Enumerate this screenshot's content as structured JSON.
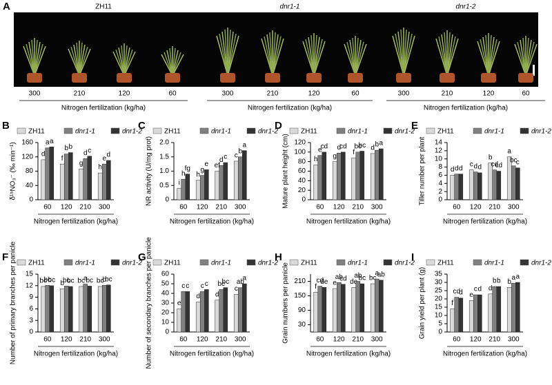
{
  "panel_a": {
    "label": "A",
    "groups": [
      {
        "name": "ZH11",
        "doses": [
          "300",
          "210",
          "120",
          "60"
        ],
        "xlabel": "Nitrogen fertilization (kg/ha)"
      },
      {
        "name": "dnr1-1",
        "doses": [
          "300",
          "210",
          "120",
          "60"
        ],
        "xlabel": "Nitrogen fertilization (kg/ha)"
      },
      {
        "name": "dnr1-2",
        "doses": [
          "300",
          "210",
          "120",
          "60"
        ],
        "xlabel": "Nitrogen fertilization (kg/ha)"
      }
    ]
  },
  "chart_data": [
    {
      "type": "bar",
      "panel": "B",
      "ylabel": "δ¹⁵NO₃⁻ (‰ min⁻¹)",
      "xlabel": "Nitrogen fertilization (kg/ha)",
      "categories": [
        "60",
        "120",
        "210",
        "300"
      ],
      "series": [
        {
          "name": "ZH11",
          "color": "#d9d9d9",
          "values": [
            112,
            100,
            86,
            75
          ],
          "letters": [
            "d",
            "f",
            "g",
            "h"
          ]
        },
        {
          "name": "dnr1-1",
          "color": "#808080",
          "values": [
            145,
            128,
            115,
            100
          ],
          "letters": [
            "a",
            "b",
            "d",
            "e"
          ]
        },
        {
          "name": "dnr1-2",
          "color": "#333333",
          "values": [
            148,
            132,
            122,
            110
          ],
          "letters": [
            "a",
            "b",
            "c",
            "d"
          ]
        }
      ],
      "ylim": [
        0,
        160
      ],
      "yticks": [
        0,
        40,
        80,
        120,
        160
      ]
    },
    {
      "type": "bar",
      "panel": "C",
      "ylabel": "NR activity (U/mg prot)",
      "xlabel": "Nitrogen fertilization (kg/ha)",
      "categories": [
        "60",
        "120",
        "210",
        "300"
      ],
      "series": [
        {
          "name": "ZH11",
          "color": "#d9d9d9",
          "values": [
            0.4,
            0.68,
            1.0,
            1.35
          ],
          "letters": [
            "i",
            "h",
            "ef",
            "c"
          ]
        },
        {
          "name": "dnr1-1",
          "color": "#808080",
          "values": [
            0.72,
            0.85,
            1.2,
            1.5
          ],
          "letters": [
            "h",
            "g",
            "d",
            "b"
          ]
        },
        {
          "name": "dnr1-2",
          "color": "#333333",
          "values": [
            0.9,
            1.05,
            1.3,
            1.72
          ],
          "letters": [
            "fg",
            "e",
            "c",
            "a"
          ]
        }
      ],
      "ylim": [
        0,
        2
      ],
      "yticks": [
        0,
        0.5,
        {
          "value": 1,
          "label": "1.0"
        },
        1.5,
        {
          "value": 2,
          "label": "2.0"
        }
      ]
    },
    {
      "type": "bar",
      "panel": "D",
      "ylabel": "Mature plant height (cm)",
      "xlabel": "Nitrogen fertilization (kg/ha)",
      "categories": [
        "60",
        "120",
        "210",
        "300"
      ],
      "series": [
        {
          "name": "ZH11",
          "color": "#d9d9d9",
          "values": [
            73,
            80,
            88,
            97
          ],
          "letters": [
            "h",
            "g",
            "f",
            "d"
          ]
        },
        {
          "name": "dnr1-1",
          "color": "#808080",
          "values": [
            93,
            98,
            100,
            104
          ],
          "letters": [
            "e",
            "d",
            "bc",
            "b"
          ]
        },
        {
          "name": "dnr1-2",
          "color": "#333333",
          "values": [
            100,
            100,
            102,
            107
          ],
          "letters": [
            "cd",
            "cd",
            "bc",
            "a"
          ]
        }
      ],
      "ylim": [
        0,
        120
      ],
      "yticks": [
        0,
        20,
        40,
        60,
        80,
        100,
        120
      ]
    },
    {
      "type": "bar",
      "panel": "E",
      "ylabel": "Tiller number per plant",
      "xlabel": "Nitrogen fertilization (kg/ha)",
      "categories": [
        "60",
        "120",
        "210",
        "300"
      ],
      "series": [
        {
          "name": "ZH11",
          "color": "#d9d9d9",
          "values": [
            6,
            7.3,
            9,
            10.5
          ],
          "letters": [
            "d",
            "c",
            "b",
            "a"
          ]
        },
        {
          "name": "dnr1-1",
          "color": "#808080",
          "values": [
            6.3,
            6.8,
            7.3,
            8.3
          ],
          "letters": [
            "d",
            "d",
            "cd",
            "bc"
          ]
        },
        {
          "name": "dnr1-2",
          "color": "#333333",
          "values": [
            6.3,
            6.6,
            7,
            7.8
          ],
          "letters": [
            "d",
            "d",
            "cd",
            "c"
          ]
        }
      ],
      "ylim": [
        0,
        14
      ],
      "yticks": [
        0,
        2,
        4,
        6,
        8,
        10,
        12,
        14
      ]
    },
    {
      "type": "bar",
      "panel": "F",
      "ylabel": "Number of primary branches per panicle",
      "xlabel": "Nitrogen fertilization (kg/ha)",
      "categories": [
        "60",
        "120",
        "210",
        "300"
      ],
      "series": [
        {
          "name": "ZH11",
          "color": "#d9d9d9",
          "values": [
            11.8,
            11.2,
            11.8,
            11.8
          ],
          "letters": [
            "bc",
            "b",
            "bc",
            "bc"
          ]
        },
        {
          "name": "dnr1-1",
          "color": "#808080",
          "values": [
            12.1,
            11.9,
            12.4,
            12.1
          ],
          "letters": [
            "bc",
            "bc",
            "a",
            "b"
          ]
        },
        {
          "name": "dnr1-2",
          "color": "#333333",
          "values": [
            12,
            11.8,
            11.9,
            12.2
          ],
          "letters": [
            "bc",
            "bc",
            "bc",
            "bc"
          ]
        }
      ],
      "ylim": [
        0,
        15
      ],
      "yticks": [
        0,
        3,
        6,
        9,
        12,
        15
      ]
    },
    {
      "type": "bar",
      "panel": "G",
      "ylabel": "Number of secondary branches per panicle",
      "xlabel": "Nitrogen fertilization (kg/ha)",
      "categories": [
        "60",
        "120",
        "210",
        "300"
      ],
      "series": [
        {
          "name": "ZH11",
          "color": "#d9d9d9",
          "values": [
            24,
            31,
            33,
            39
          ],
          "letters": [
            "e",
            "d",
            "d",
            "c"
          ]
        },
        {
          "name": "dnr1-1",
          "color": "#808080",
          "values": [
            42,
            42,
            44,
            46
          ],
          "letters": [
            "c",
            "c",
            "bc",
            "ab"
          ]
        },
        {
          "name": "dnr1-2",
          "color": "#333333",
          "values": [
            42,
            44,
            46,
            50
          ],
          "letters": [
            "c",
            "c",
            "bc",
            "a"
          ]
        }
      ],
      "ylim": [
        0,
        60
      ],
      "yticks": [
        0,
        10,
        20,
        30,
        40,
        50,
        60
      ]
    },
    {
      "type": "bar",
      "panel": "H",
      "ylabel": "Grain numbers per panicle",
      "xlabel": "Nitrogen fertilization (kg/ha)",
      "categories": [
        "60",
        "120",
        "210",
        "300"
      ],
      "series": [
        {
          "name": "ZH11",
          "color": "#d9d9d9",
          "values": [
            165,
            180,
            185,
            200
          ],
          "letters": [
            "f",
            "e",
            "de",
            "bc"
          ]
        },
        {
          "name": "dnr1-1",
          "color": "#808080",
          "values": [
            190,
            205,
            210,
            220
          ],
          "letters": [
            "cd",
            "ab",
            "ab",
            "a"
          ]
        },
        {
          "name": "dnr1-2",
          "color": "#333333",
          "values": [
            185,
            198,
            200,
            215
          ],
          "letters": [
            "de",
            "cd",
            "bc",
            "ab"
          ]
        }
      ],
      "ylim": [
        0,
        240
      ],
      "yticks": [
        30,
        90,
        150,
        210
      ]
    },
    {
      "type": "bar",
      "panel": "I",
      "ylabel": "Grain yield per plant (g)",
      "xlabel": "Nitrogen fertilization (kg/ha)",
      "categories": [
        "60",
        "120",
        "210",
        "300"
      ],
      "series": [
        {
          "name": "ZH11",
          "color": "#d9d9d9",
          "values": [
            14,
            19,
            23,
            27
          ],
          "letters": [
            "f",
            "e",
            "d",
            "b"
          ]
        },
        {
          "name": "dnr1-1",
          "color": "#808080",
          "values": [
            21,
            22.5,
            27.5,
            29.5
          ],
          "letters": [
            "cd",
            "c",
            "b",
            "a"
          ]
        },
        {
          "name": "dnr1-2",
          "color": "#333333",
          "values": [
            20.5,
            22.5,
            27.5,
            30
          ],
          "letters": [
            "d",
            "d",
            "b",
            "a"
          ]
        }
      ],
      "ylim": [
        0,
        35
      ],
      "yticks": [
        0,
        5,
        10,
        15,
        20,
        25,
        30,
        35
      ]
    }
  ]
}
